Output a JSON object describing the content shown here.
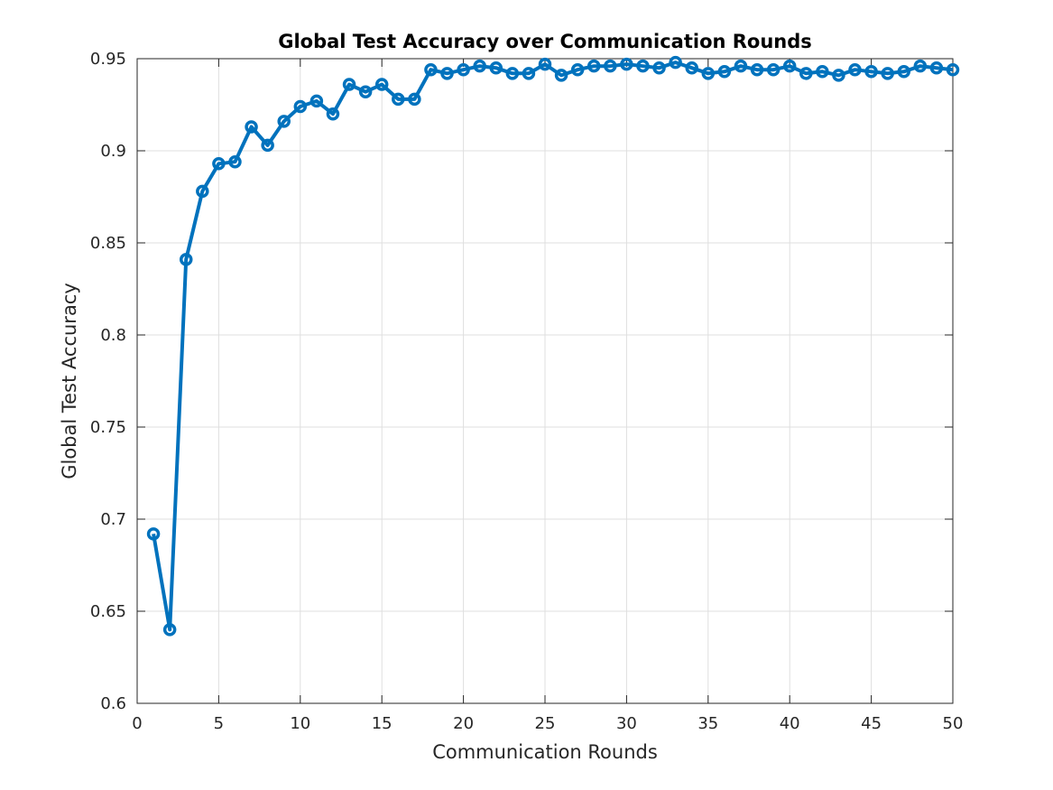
{
  "chart_data": {
    "type": "line",
    "title": "Global Test Accuracy over Communication Rounds",
    "xlabel": "Communication Rounds",
    "ylabel": "Global Test Accuracy",
    "xlim": [
      0,
      50
    ],
    "ylim": [
      0.6,
      0.95
    ],
    "x_ticks": [
      "0",
      "5",
      "10",
      "15",
      "20",
      "25",
      "30",
      "35",
      "40",
      "45",
      "50"
    ],
    "y_ticks": [
      "0.6",
      "0.65",
      "0.7",
      "0.75",
      "0.8",
      "0.85",
      "0.9",
      "0.95"
    ],
    "grid": true,
    "legend": "none",
    "marker": "circle",
    "series": [
      {
        "color": "#0072BD",
        "x": [
          1,
          2,
          3,
          4,
          5,
          6,
          7,
          8,
          9,
          10,
          11,
          12,
          13,
          14,
          15,
          16,
          17,
          18,
          19,
          20,
          21,
          22,
          23,
          24,
          25,
          26,
          27,
          28,
          29,
          30,
          31,
          32,
          33,
          34,
          35,
          36,
          37,
          38,
          39,
          40,
          41,
          42,
          43,
          44,
          45,
          46,
          47,
          48,
          49,
          50
        ],
        "y": [
          0.692,
          0.64,
          0.841,
          0.878,
          0.893,
          0.894,
          0.913,
          0.903,
          0.916,
          0.924,
          0.927,
          0.92,
          0.936,
          0.932,
          0.936,
          0.928,
          0.928,
          0.944,
          0.942,
          0.944,
          0.946,
          0.945,
          0.942,
          0.942,
          0.947,
          0.941,
          0.944,
          0.946,
          0.946,
          0.947,
          0.946,
          0.945,
          0.948,
          0.945,
          0.942,
          0.943,
          0.946,
          0.944,
          0.944,
          0.946,
          0.942,
          0.943,
          0.941,
          0.944,
          0.943,
          0.942,
          0.943,
          0.946,
          0.945,
          0.944
        ]
      }
    ]
  }
}
